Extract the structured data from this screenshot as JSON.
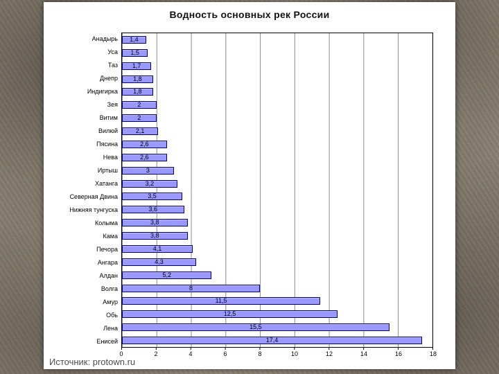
{
  "slide": {
    "title": "Водность основных рек России",
    "source": "Источник: protown.ru"
  },
  "chart_data": {
    "type": "bar",
    "orientation": "horizontal",
    "title": "Водность основных рек России",
    "xlabel": "",
    "ylabel": "",
    "xlim": [
      0,
      18
    ],
    "x_ticks": [
      "0",
      "2",
      "4",
      "6",
      "8",
      "10",
      "12",
      "14",
      "16",
      "18"
    ],
    "grid": true,
    "legend": false,
    "bar_color": "#9999ff",
    "bar_border_color": "#000066",
    "categories": [
      "Анадырь",
      "Уса",
      "Таз",
      "Днепр",
      "Индигирка",
      "Зея",
      "Витим",
      "Вилюй",
      "Пясина",
      "Нева",
      "Иртыш",
      "Хатанга",
      "Северная Двина",
      "Нижняя тунгуска",
      "Колыма",
      "Кама",
      "Печора",
      "Ангара",
      "Алдан",
      "Волга",
      "Амур",
      "Обь",
      "Лена",
      "Енисей"
    ],
    "values": [
      1.4,
      1.5,
      1.7,
      1.8,
      1.8,
      2,
      2,
      2.1,
      2.6,
      2.6,
      3,
      3.2,
      3.5,
      3.6,
      3.8,
      3.8,
      4.1,
      4.3,
      5.2,
      8,
      11.5,
      12.5,
      15.5,
      17.4
    ],
    "value_labels": [
      "1,4",
      "1,5",
      "1,7",
      "1,8",
      "1,8",
      "2",
      "2",
      "2,1",
      "2,6",
      "2,6",
      "3",
      "3,2",
      "3,5",
      "3,6",
      "3,8",
      "3,8",
      "4,1",
      "4,3",
      "5,2",
      "8",
      "11,5",
      "12,5",
      "15,5",
      "17,4"
    ]
  }
}
